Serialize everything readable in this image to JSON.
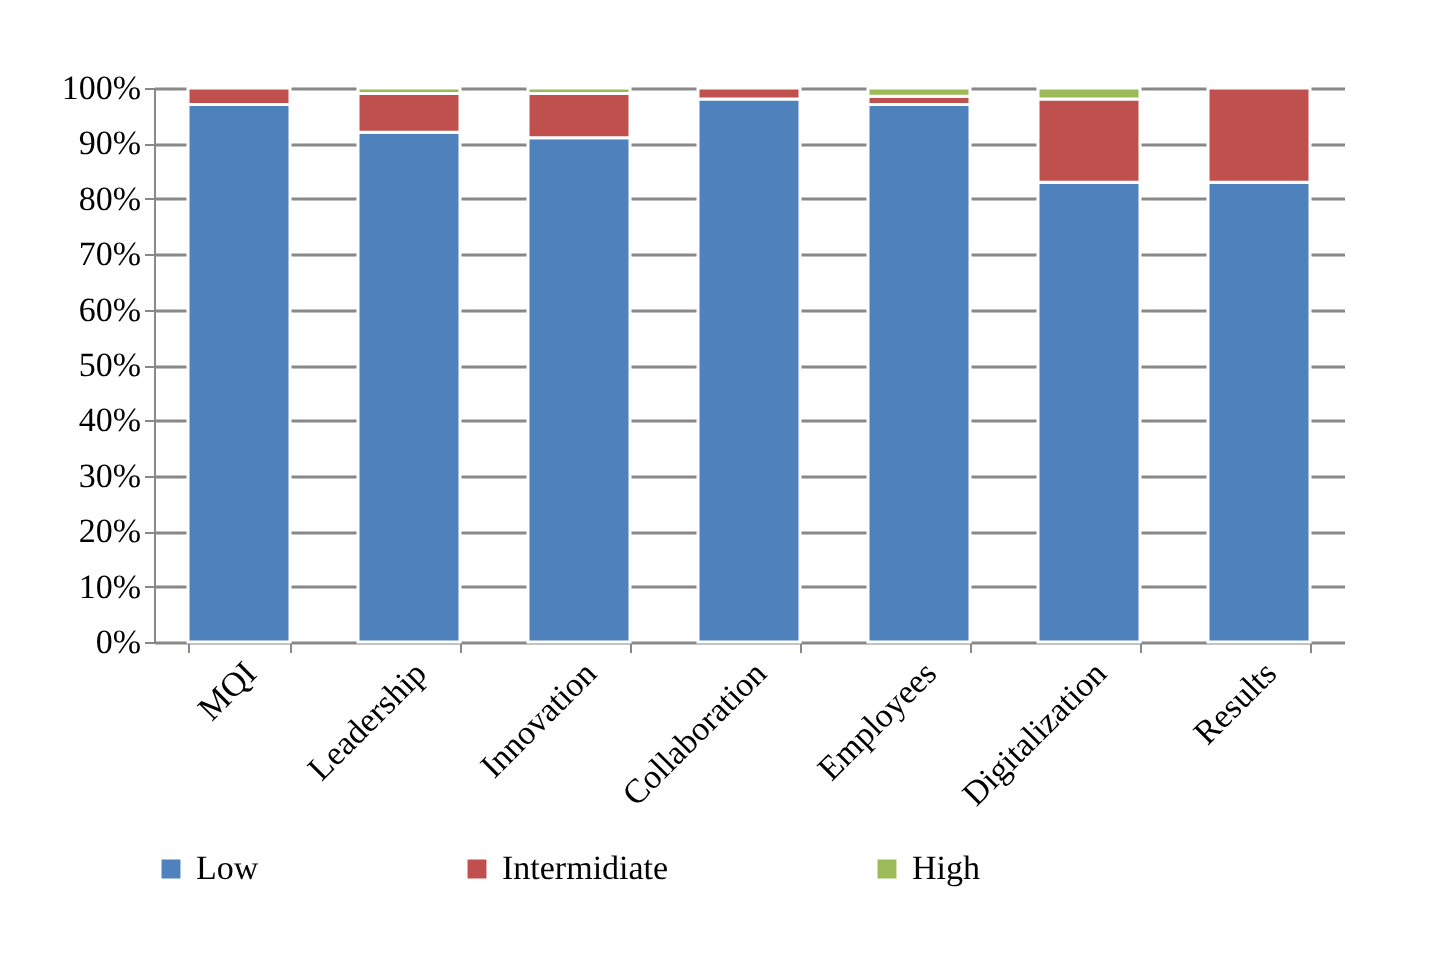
{
  "chart_data": {
    "type": "bar",
    "stacked": true,
    "categories": [
      "MQI",
      "Leadership",
      "Innovation",
      "Collaboration",
      "Employees",
      "Digitalization",
      "Results"
    ],
    "series": [
      {
        "name": "Low",
        "color": "#4f81bd",
        "values": [
          97,
          92,
          91,
          98,
          97,
          83,
          83
        ]
      },
      {
        "name": "Intermidiate",
        "color": "#c0504d",
        "values": [
          3,
          7,
          8,
          2,
          1.5,
          15,
          17
        ]
      },
      {
        "name": "High",
        "color": "#9bbb59",
        "values": [
          null,
          1,
          1,
          null,
          1.5,
          2,
          null
        ]
      }
    ],
    "ylim": [
      0,
      100
    ],
    "yticks": [
      {
        "value": 0,
        "label": "0%"
      },
      {
        "value": 10,
        "label": "10%"
      },
      {
        "value": 20,
        "label": "20%"
      },
      {
        "value": 30,
        "label": "30%"
      },
      {
        "value": 40,
        "label": "40%"
      },
      {
        "value": 50,
        "label": "50%"
      },
      {
        "value": 60,
        "label": "60%"
      },
      {
        "value": 70,
        "label": "70%"
      },
      {
        "value": 80,
        "label": "80%"
      },
      {
        "value": 90,
        "label": "90%"
      },
      {
        "value": 100,
        "label": "100%"
      }
    ],
    "grid": "y",
    "legend": "bottom"
  }
}
